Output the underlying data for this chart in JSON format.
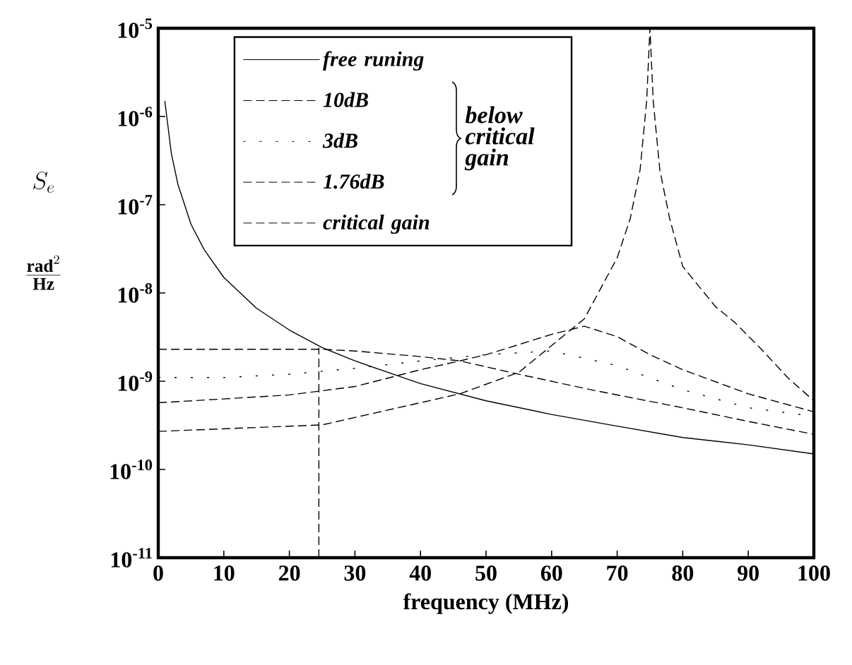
{
  "chart_data": {
    "type": "line",
    "xlabel": "frequency (MHz)",
    "ylabel": "\\begin{array}{c}S_{e}\\\\[5ex]\\frac{\\mathbf{rad}^{2}}{\\mathbf{Hz}}\\end{array}",
    "log": "y",
    "grid": false,
    "legend": "top left",
    "xlim": [
      0,
      100
    ],
    "xticks": [
      0,
      10,
      20,
      30,
      40,
      50,
      60,
      70,
      80,
      90,
      100
    ],
    "ylim": [
      1e-11,
      1e-05
    ],
    "yticks": [
      {
        "value": 1e-11,
        "label": "10$^{-11}$"
      },
      {
        "value": 1e-10,
        "label": "10$^{-10}$"
      },
      {
        "value": 1e-09,
        "label": "10$^{-9}$"
      },
      {
        "value": 1e-08,
        "label": "10$^{-8}$"
      },
      {
        "value": 1e-07,
        "label": "10$^{-7}$"
      },
      {
        "value": 1e-06,
        "label": "10$^{-6}$"
      },
      {
        "value": 1e-05,
        "label": "10$^{-5}$"
      }
    ],
    "annotations": [
      "below critical gain"
    ],
    "series": [
      {
        "name": "free runing",
        "color": "#000000",
        "line_style": "solid",
        "x": [
          1,
          2,
          3,
          5,
          7,
          10,
          15,
          20,
          25,
          30,
          40,
          50,
          60,
          70,
          80,
          90,
          100
        ],
        "values": [
          1.5e-06,
          3.8e-07,
          1.7e-07,
          6e-08,
          3.1e-08,
          1.5e-08,
          6.7e-09,
          3.8e-09,
          2.4e-09,
          1.7e-09,
          9.4e-10,
          6e-10,
          4.2e-10,
          3.1e-10,
          2.3e-10,
          1.9e-10,
          1.5e-10
        ]
      },
      {
        "name": "10dB",
        "color": "#000000",
        "line_style": "dashed",
        "x": [
          0,
          10,
          20,
          25,
          30,
          40,
          46,
          55,
          66,
          80,
          90,
          100
        ],
        "values": [
          2.3e-09,
          2.3e-09,
          2.3e-09,
          2.3e-09,
          2.2e-09,
          1.9e-09,
          1.7e-09,
          1.2e-09,
          8e-10,
          5e-10,
          3.5e-10,
          2.5e-10
        ]
      },
      {
        "name": "3dB",
        "color": "#000000",
        "line_style": "dotted",
        "x": [
          0,
          10,
          20,
          30,
          40,
          50,
          60,
          70,
          80,
          90,
          100
        ],
        "values": [
          1.1e-09,
          1.1e-09,
          1.2e-09,
          1.4e-09,
          1.7e-09,
          2e-09,
          2.2e-09,
          1.5e-09,
          8e-10,
          5e-10,
          4e-10
        ]
      },
      {
        "name": "1.76dB",
        "color": "#000000",
        "line_style": "dashed",
        "x": [
          0,
          10,
          20,
          25,
          30,
          40,
          46,
          50,
          55,
          60,
          65,
          70,
          75,
          80,
          90,
          100
        ],
        "values": [
          5.7e-10,
          6.3e-10,
          7e-10,
          7.8e-10,
          8.7e-10,
          1.35e-09,
          1.7e-09,
          2e-09,
          2.6e-09,
          3.4e-09,
          4.2e-09,
          3.2e-09,
          2e-09,
          1.35e-09,
          7.2e-10,
          4.5e-10
        ]
      },
      {
        "name": "critical gain",
        "color": "#000000",
        "line_style": "dashed",
        "x": [
          0,
          25,
          46,
          55,
          65,
          70,
          72,
          73.5,
          74.5,
          75,
          75.5,
          76.5,
          78,
          80,
          85,
          88,
          92,
          96,
          100
        ],
        "values": [
          2.7e-10,
          3.2e-10,
          7.2e-10,
          1.26e-09,
          5.1e-09,
          2.5e-08,
          7e-08,
          2.5e-07,
          1.5e-06,
          1e-05,
          1.5e-06,
          2.5e-07,
          7e-08,
          2e-08,
          7e-09,
          4.6e-09,
          2.3e-09,
          1.1e-09,
          6e-10
        ]
      },
      {
        "color": "#000000",
        "line_style": "dashed",
        "x": [
          24.5,
          24.5
        ],
        "values": [
          1e-11,
          2.4e-09
        ]
      }
    ]
  }
}
